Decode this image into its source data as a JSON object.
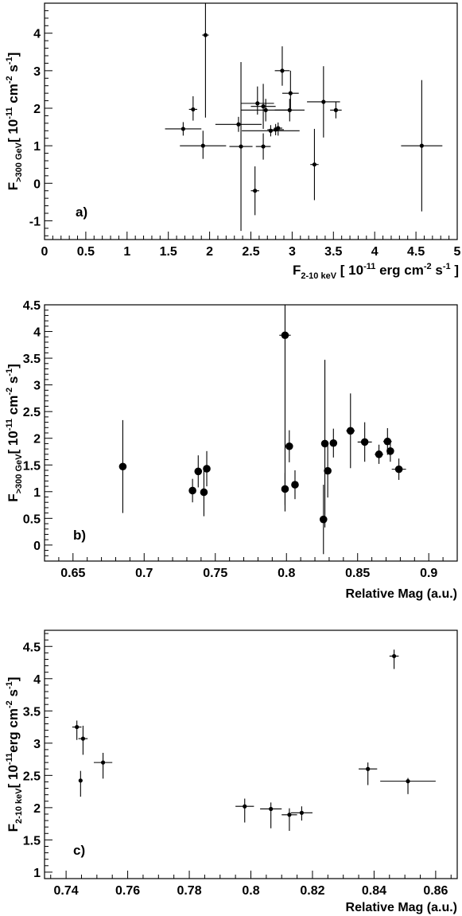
{
  "chart_data": [
    {
      "type": "scatter",
      "panel_label": "a)",
      "xlabel": {
        "main": "F",
        "sub": "2-10 keV",
        "unit_pre": " [ 10",
        "exp1": "-11",
        "unit_mid": " erg cm",
        "exp2": "-2",
        "unit_s": " s",
        "exp3": "-1",
        "unit_post": " ]"
      },
      "ylabel": {
        "main": "F",
        "sub": ">300 GeV",
        "unit_pre": "[ 10",
        "exp1": "-11",
        "unit_mid": " cm",
        "exp2": "-2",
        "unit_s": " s",
        "exp3": "-1",
        "unit_post": "]"
      },
      "xlim": [
        0,
        5
      ],
      "ylim": [
        -1.5,
        4.8
      ],
      "xticks": [
        "0",
        "0.5",
        "1",
        "1.5",
        "2",
        "2.5",
        "3",
        "3.5",
        "4",
        "4.5",
        "5"
      ],
      "yticks": [
        "-1",
        "0",
        "1",
        "2",
        "3",
        "4"
      ],
      "marker": "small",
      "points": [
        {
          "x": 1.95,
          "y": 3.95,
          "xerr": 0.04,
          "yerr_lo": 2.2,
          "yerr_hi": 1.0
        },
        {
          "x": 2.88,
          "y": 3.0,
          "xerr": 0.09,
          "yerr_lo": 0.4,
          "yerr_hi": 0.65
        },
        {
          "x": 2.98,
          "y": 2.4,
          "xerr": 0.1,
          "yerr_lo": 0.4,
          "yerr_hi": 0.6
        },
        {
          "x": 3.38,
          "y": 2.17,
          "xerr": 0.2,
          "yerr_lo": 0.95,
          "yerr_hi": 0.95
        },
        {
          "x": 3.53,
          "y": 1.95,
          "xerr": 0.07,
          "yerr_lo": 0.22,
          "yerr_hi": 0.22
        },
        {
          "x": 2.58,
          "y": 2.13,
          "xerr": 0.2,
          "yerr_lo": 0.3,
          "yerr_hi": 0.45
        },
        {
          "x": 2.65,
          "y": 2.05,
          "xerr": 0.15,
          "yerr_lo": 0.6,
          "yerr_hi": 0.6
        },
        {
          "x": 1.8,
          "y": 1.97,
          "xerr": 0.05,
          "yerr_lo": 0.3,
          "yerr_hi": 0.35
        },
        {
          "x": 2.97,
          "y": 1.95,
          "xerr": 0.18,
          "yerr_lo": 0.3,
          "yerr_hi": 0.3
        },
        {
          "x": 2.68,
          "y": 1.95,
          "xerr": 0.3,
          "yerr_lo": 0.3,
          "yerr_hi": 0.3
        },
        {
          "x": 2.35,
          "y": 1.57,
          "xerr": 0.28,
          "yerr_lo": 0.2,
          "yerr_hi": 0.2
        },
        {
          "x": 1.68,
          "y": 1.45,
          "xerr": 0.22,
          "yerr_lo": 0.18,
          "yerr_hi": 0.18
        },
        {
          "x": 2.74,
          "y": 1.4,
          "xerr": 0.35,
          "yerr_lo": 0.15,
          "yerr_hi": 0.15
        },
        {
          "x": 2.8,
          "y": 1.43,
          "xerr": 0.1,
          "yerr_lo": 0.15,
          "yerr_hi": 0.15
        },
        {
          "x": 2.83,
          "y": 1.47,
          "xerr": 0.05,
          "yerr_lo": 0.2,
          "yerr_hi": 0.15
        },
        {
          "x": 1.92,
          "y": 1.0,
          "xerr": 0.28,
          "yerr_lo": 0.35,
          "yerr_hi": 0.4
        },
        {
          "x": 2.38,
          "y": 0.98,
          "xerr": 0.14,
          "yerr_lo": 2.25,
          "yerr_hi": 2.25
        },
        {
          "x": 2.65,
          "y": 0.98,
          "xerr": 0.09,
          "yerr_lo": 0.35,
          "yerr_hi": 0.35
        },
        {
          "x": 4.57,
          "y": 1.0,
          "xerr": 0.25,
          "yerr_lo": 1.75,
          "yerr_hi": 1.75
        },
        {
          "x": 3.27,
          "y": 0.5,
          "xerr": 0.05,
          "yerr_lo": 0.95,
          "yerr_hi": 0.95
        },
        {
          "x": 2.55,
          "y": -0.2,
          "xerr": 0.05,
          "yerr_lo": 0.65,
          "yerr_hi": 0.65
        }
      ]
    },
    {
      "type": "scatter",
      "panel_label": "b)",
      "xlabel": {
        "main": "Relative Mag (a.u.)"
      },
      "ylabel": {
        "main": "F",
        "sub": ">300 GeV",
        "unit_pre": "[ 10",
        "exp1": "-11",
        "unit_mid": " cm",
        "exp2": "-2",
        "unit_s": " s",
        "exp3": "-1",
        "unit_post": "]"
      },
      "xlim": [
        0.63,
        0.92
      ],
      "ylim": [
        -0.3,
        4.5
      ],
      "xticks": [
        "0.65",
        "0.7",
        "0.75",
        "0.8",
        "0.85",
        "0.9"
      ],
      "yticks": [
        "0",
        "0.5",
        "1",
        "1.5",
        "2",
        "2.5",
        "3",
        "3.5",
        "4",
        "4.5"
      ],
      "marker": "large",
      "points": [
        {
          "x": 0.685,
          "y": 1.47,
          "xerr": 0.002,
          "yerr_lo": 0.87,
          "yerr_hi": 0.87
        },
        {
          "x": 0.734,
          "y": 1.02,
          "xerr": 0.0,
          "yerr_lo": 0.22,
          "yerr_hi": 0.22
        },
        {
          "x": 0.738,
          "y": 1.38,
          "xerr": 0.0,
          "yerr_lo": 0.3,
          "yerr_hi": 0.3
        },
        {
          "x": 0.742,
          "y": 0.99,
          "xerr": 0.0,
          "yerr_lo": 0.45,
          "yerr_hi": 0.45
        },
        {
          "x": 0.744,
          "y": 1.43,
          "xerr": 0.0,
          "yerr_lo": 0.33,
          "yerr_hi": 0.33
        },
        {
          "x": 0.799,
          "y": 3.93,
          "xerr": 0.004,
          "yerr_lo": 3.3,
          "yerr_hi": 0.6
        },
        {
          "x": 0.799,
          "y": 1.05,
          "xerr": 0.0,
          "yerr_lo": 0.3,
          "yerr_hi": 0.3
        },
        {
          "x": 0.802,
          "y": 1.85,
          "xerr": 0.0,
          "yerr_lo": 0.3,
          "yerr_hi": 0.3
        },
        {
          "x": 0.806,
          "y": 1.13,
          "xerr": 0.0,
          "yerr_lo": 0.27,
          "yerr_hi": 0.27
        },
        {
          "x": 0.826,
          "y": 0.48,
          "xerr": 0.0,
          "yerr_lo": 0.65,
          "yerr_hi": 0.65
        },
        {
          "x": 0.827,
          "y": 1.9,
          "xerr": 0.0,
          "yerr_lo": 1.57,
          "yerr_hi": 1.57
        },
        {
          "x": 0.829,
          "y": 1.39,
          "xerr": 0.0,
          "yerr_lo": 0.5,
          "yerr_hi": 0.5
        },
        {
          "x": 0.833,
          "y": 1.91,
          "xerr": 0.0,
          "yerr_lo": 0.27,
          "yerr_hi": 0.27
        },
        {
          "x": 0.845,
          "y": 2.14,
          "xerr": 0.003,
          "yerr_lo": 0.7,
          "yerr_hi": 0.7
        },
        {
          "x": 0.855,
          "y": 1.93,
          "xerr": 0.005,
          "yerr_lo": 0.37,
          "yerr_hi": 0.37
        },
        {
          "x": 0.865,
          "y": 1.7,
          "xerr": 0.003,
          "yerr_lo": 0.18,
          "yerr_hi": 0.18
        },
        {
          "x": 0.871,
          "y": 1.94,
          "xerr": 0.003,
          "yerr_lo": 0.25,
          "yerr_hi": 0.25
        },
        {
          "x": 0.873,
          "y": 1.76,
          "xerr": 0.0,
          "yerr_lo": 0.2,
          "yerr_hi": 0.2
        },
        {
          "x": 0.879,
          "y": 1.42,
          "xerr": 0.005,
          "yerr_lo": 0.2,
          "yerr_hi": 0.2
        }
      ]
    },
    {
      "type": "scatter",
      "panel_label": "c)",
      "xlabel": {
        "main": "Relative Mag (a.u.)"
      },
      "ylabel": {
        "main": "F",
        "sub": "2-10 keV",
        "unit_pre": "[ 10",
        "exp1": "-11",
        "unit_mid": "erg cm",
        "exp2": "-2",
        "unit_s": " s",
        "exp3": "-1",
        "unit_post": "]"
      },
      "xlim": [
        0.733,
        0.867
      ],
      "ylim": [
        0.9,
        4.75
      ],
      "xticks": [
        "0.74",
        "0.76",
        "0.78",
        "0.8",
        "0.82",
        "0.84",
        "0.86"
      ],
      "yticks": [
        "1",
        "1.5",
        "2",
        "2.5",
        "3",
        "3.5",
        "4",
        "4.5"
      ],
      "marker": "small",
      "points": [
        {
          "x": 0.7435,
          "y": 3.25,
          "xerr": 0.0015,
          "yerr_lo": 0.2,
          "yerr_hi": 0.1
        },
        {
          "x": 0.7455,
          "y": 3.07,
          "xerr": 0.0015,
          "yerr_lo": 0.25,
          "yerr_hi": 0.2
        },
        {
          "x": 0.7447,
          "y": 2.42,
          "xerr": 0.0005,
          "yerr_lo": 0.25,
          "yerr_hi": 0.15
        },
        {
          "x": 0.752,
          "y": 2.7,
          "xerr": 0.003,
          "yerr_lo": 0.25,
          "yerr_hi": 0.15
        },
        {
          "x": 0.798,
          "y": 2.02,
          "xerr": 0.003,
          "yerr_lo": 0.25,
          "yerr_hi": 0.12
        },
        {
          "x": 0.8065,
          "y": 1.98,
          "xerr": 0.0035,
          "yerr_lo": 0.3,
          "yerr_hi": 0.1
        },
        {
          "x": 0.8125,
          "y": 1.89,
          "xerr": 0.0025,
          "yerr_lo": 0.25,
          "yerr_hi": 0.1
        },
        {
          "x": 0.8165,
          "y": 1.92,
          "xerr": 0.0035,
          "yerr_lo": 0.12,
          "yerr_hi": 0.1
        },
        {
          "x": 0.838,
          "y": 2.6,
          "xerr": 0.003,
          "yerr_lo": 0.25,
          "yerr_hi": 0.1
        },
        {
          "x": 0.8465,
          "y": 4.35,
          "xerr": 0.0015,
          "yerr_lo": 0.2,
          "yerr_hi": 0.1
        },
        {
          "x": 0.851,
          "y": 2.41,
          "xerr": 0.009,
          "yerr_lo": 0.2,
          "yerr_hi": 0.05
        }
      ]
    }
  ]
}
